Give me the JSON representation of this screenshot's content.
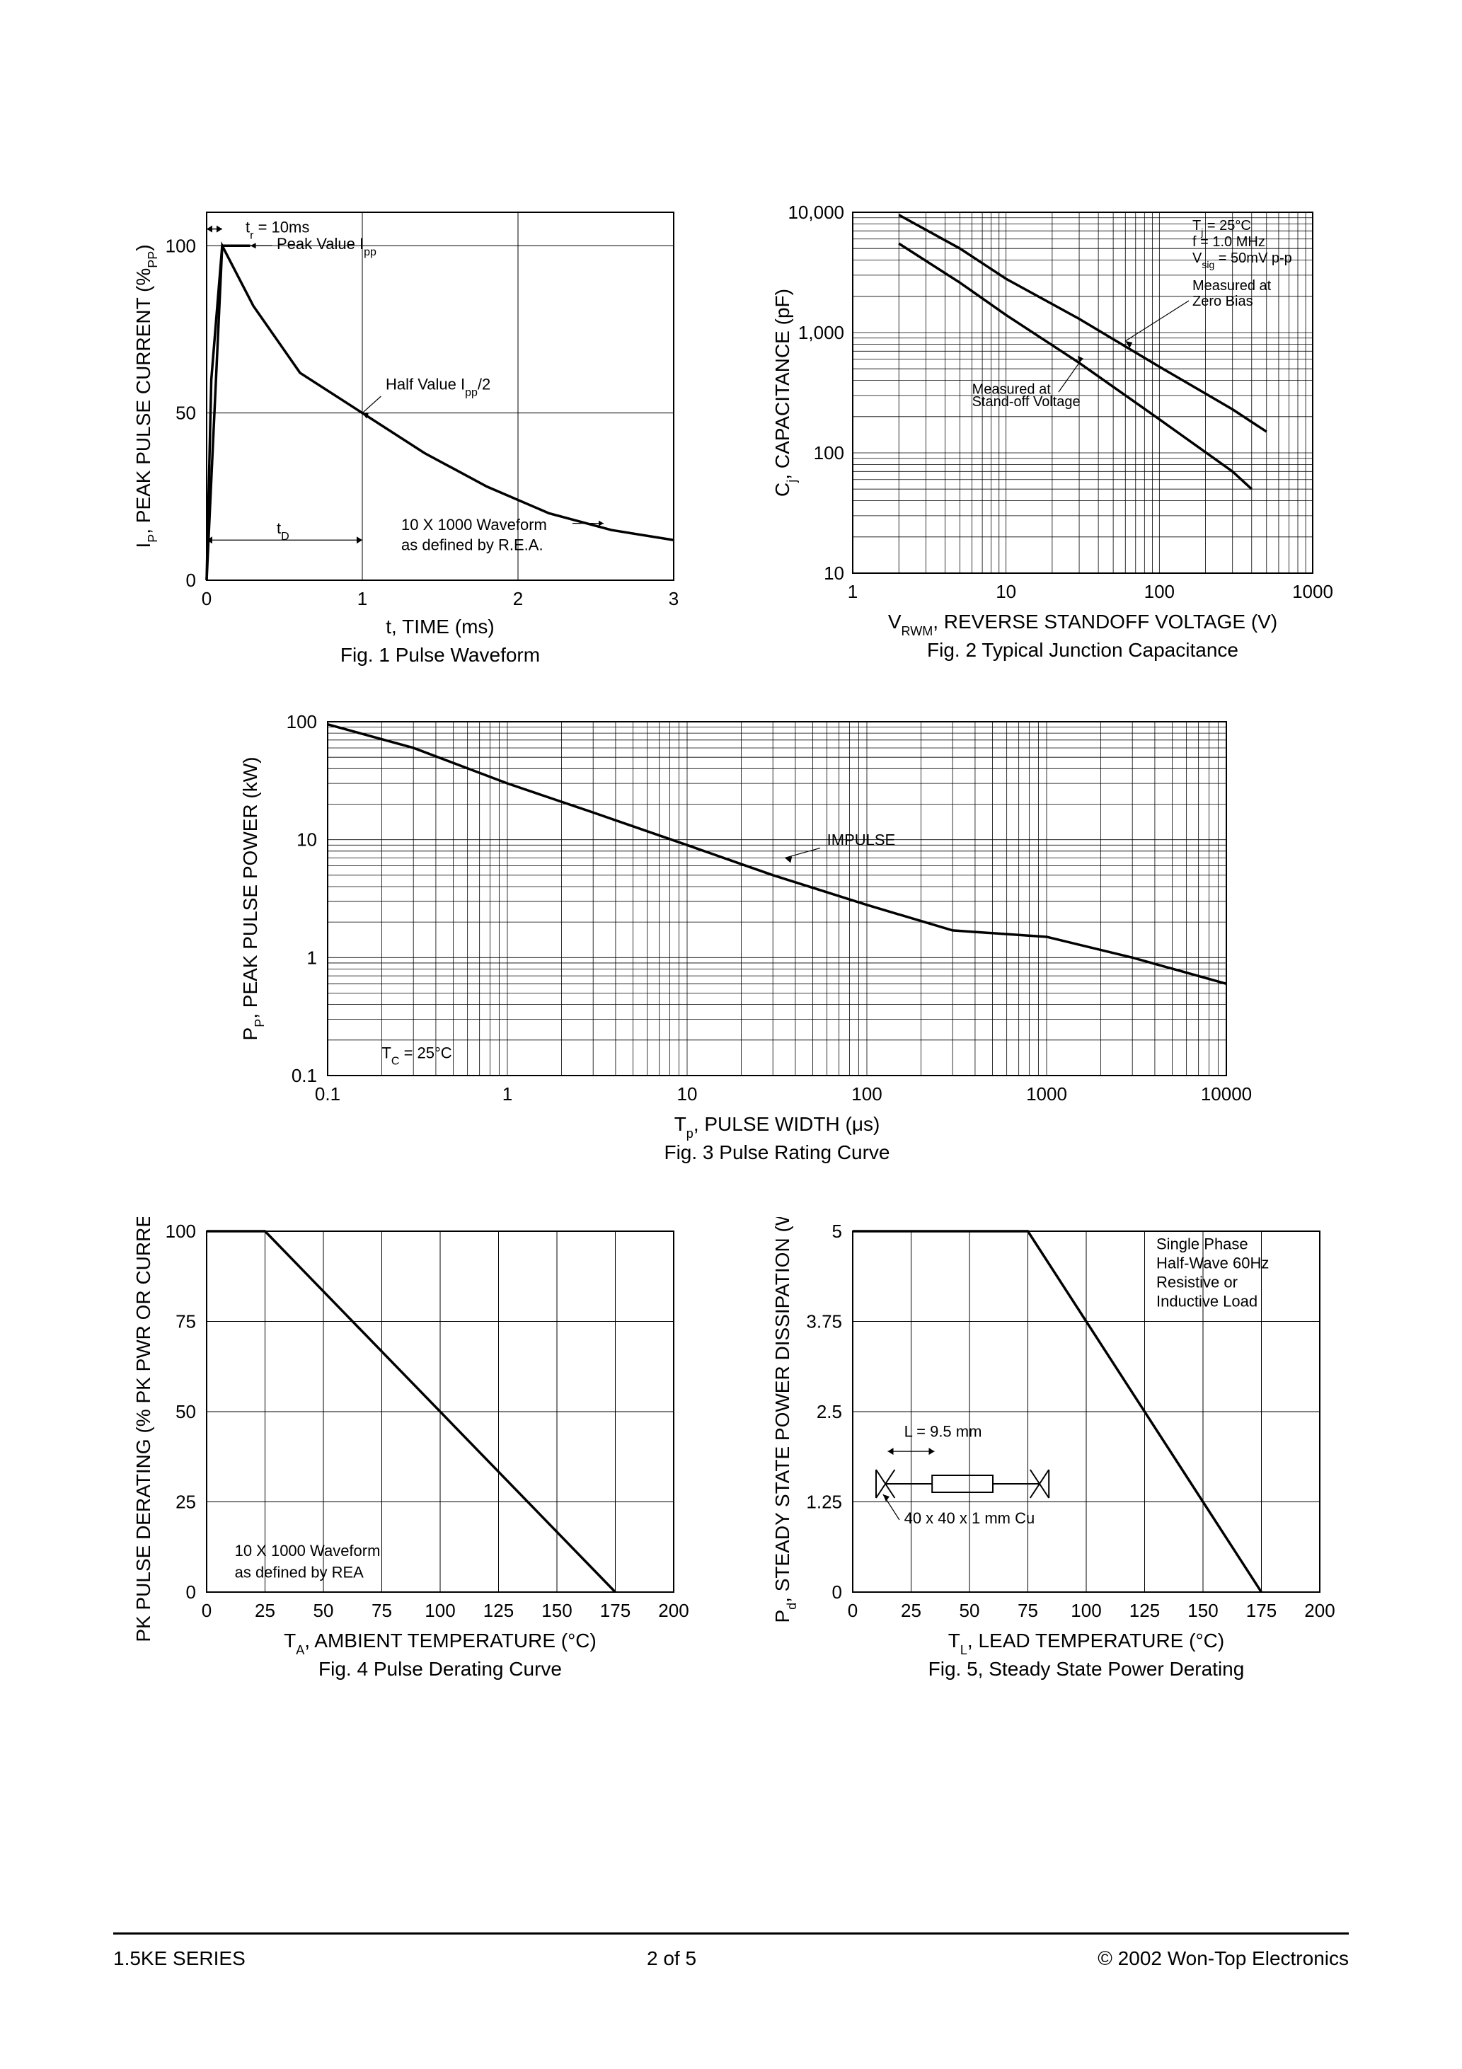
{
  "page": {
    "series": "1.5KE SERIES",
    "pageNum": "2  of  5",
    "copyright": "© 2002 Won-Top Electronics"
  },
  "fig1": {
    "caption": "Fig. 1  Pulse Waveform",
    "xlabel": "t, TIME (ms)",
    "ylabel_html": "I<tspan baseline-shift='sub' font-size='18'>P</tspan>, PEAK PULSE CURRENT (%<tspan baseline-shift='sub' font-size='18'>PP</tspan>)",
    "xticks": [
      0,
      1,
      2,
      3
    ],
    "yticks": [
      0,
      50,
      100
    ],
    "xlim": [
      0,
      3
    ],
    "ylim": [
      0,
      110
    ],
    "ann_tr": "t<tspan baseline-shift='sub' font-size='16'>r</tspan> = 10ms",
    "ann_peak": "Peak Value I<tspan baseline-shift='sub' font-size='16'>pp</tspan>",
    "ann_half": "Half Value I<tspan baseline-shift='sub' font-size='16'>pp</tspan>/2",
    "ann_td": "t<tspan baseline-shift='sub' font-size='16'>D</tspan>",
    "ann_wave1": "10 X 1000 Waveform",
    "ann_wave2": "as defined by R.E.A.",
    "curve": [
      [
        0,
        0
      ],
      [
        0.03,
        60
      ],
      [
        0.1,
        100
      ],
      [
        0.3,
        82
      ],
      [
        0.6,
        62
      ],
      [
        1.0,
        50
      ],
      [
        1.4,
        38
      ],
      [
        1.8,
        28
      ],
      [
        2.2,
        20
      ],
      [
        2.6,
        15
      ],
      [
        3.0,
        12
      ]
    ],
    "rise_line": [
      [
        0,
        0
      ],
      [
        0.1,
        100
      ]
    ],
    "peak_flat": [
      [
        0.1,
        100
      ],
      [
        0.28,
        100
      ]
    ],
    "colors": {
      "line": "#000000",
      "grid": "#000000",
      "bg": "#ffffff"
    }
  },
  "fig2": {
    "caption": "Fig. 2 Typical Junction Capacitance",
    "xlabel_html": "V<tspan baseline-shift='sub' font-size='18'>RWM</tspan>, REVERSE STANDOFF VOLTAGE (V)",
    "ylabel_html": "C<tspan baseline-shift='sub' font-size='18'>j</tspan>, CAPACITANCE (pF)",
    "xticks": [
      1,
      10,
      100,
      1000
    ],
    "yticks": [
      10,
      100,
      1000,
      10000
    ],
    "ann1": "T<tspan baseline-shift='sub' font-size='14'>j</tspan> = 25°C",
    "ann2": "f = 1.0 MHz",
    "ann3": "V<tspan baseline-shift='sub' font-size='14'>sig</tspan> = 50mV p-p",
    "ann_zero": "Measured at",
    "ann_zero2": "Zero Bias",
    "ann_so": "Measured at",
    "ann_so2": "Stand-off Voltage",
    "curve_zero": [
      [
        2,
        9500
      ],
      [
        5,
        5000
      ],
      [
        10,
        2800
      ],
      [
        30,
        1300
      ],
      [
        100,
        520
      ],
      [
        300,
        230
      ],
      [
        500,
        150
      ]
    ],
    "curve_so": [
      [
        2,
        5500
      ],
      [
        5,
        2600
      ],
      [
        10,
        1400
      ],
      [
        30,
        560
      ],
      [
        100,
        190
      ],
      [
        300,
        70
      ],
      [
        400,
        50
      ]
    ],
    "colors": {
      "line": "#000000",
      "grid": "#000000",
      "bg": "#ffffff"
    }
  },
  "fig3": {
    "caption": "Fig. 3 Pulse Rating Curve",
    "xlabel_html": "T<tspan baseline-shift='sub' font-size='18'>p</tspan>, PULSE WIDTH (μs)",
    "ylabel_html": "P<tspan baseline-shift='sub' font-size='18'>P</tspan>, PEAK PULSE POWER (kW)",
    "xticks": [
      0.1,
      1.0,
      10,
      100,
      1000,
      10000
    ],
    "yticks": [
      0.1,
      1.0,
      10,
      100
    ],
    "ann_tc": "T<tspan baseline-shift='sub' font-size='16'>C</tspan> = 25°C",
    "ann_imp": "IMPULSE",
    "curve": [
      [
        0.1,
        95
      ],
      [
        0.3,
        60
      ],
      [
        1,
        30
      ],
      [
        3,
        17
      ],
      [
        10,
        9
      ],
      [
        30,
        5
      ],
      [
        100,
        2.8
      ],
      [
        300,
        1.7
      ],
      [
        1000,
        1.5
      ],
      [
        3000,
        1.0
      ],
      [
        10000,
        0.6
      ]
    ],
    "colors": {
      "line": "#000000",
      "grid": "#000000",
      "bg": "#ffffff"
    }
  },
  "fig4": {
    "caption": "Fig. 4  Pulse Derating Curve",
    "xlabel_html": "T<tspan baseline-shift='sub' font-size='18'>A</tspan>, AMBIENT TEMPERATURE (°C)",
    "ylabel": "PK PULSE DERATING (% PK PWR OR CURRENT)",
    "xticks": [
      0,
      25,
      50,
      75,
      100,
      125,
      150,
      175,
      200
    ],
    "yticks": [
      0,
      25,
      50,
      75,
      100
    ],
    "ann_wave1": "10 X 1000 Waveform",
    "ann_wave2": "as defined by REA",
    "curve": [
      [
        0,
        100
      ],
      [
        25,
        100
      ],
      [
        175,
        0
      ]
    ],
    "colors": {
      "line": "#000000",
      "grid": "#000000",
      "bg": "#ffffff"
    }
  },
  "fig5": {
    "caption": "Fig. 5, Steady State Power Derating",
    "xlabel_html": "T<tspan baseline-shift='sub' font-size='18'>L</tspan>, LEAD TEMPERATURE (°C)",
    "ylabel_html": "P<tspan baseline-shift='sub' font-size='18'>d</tspan>, STEADY STATE POWER DISSIPATION (W)",
    "xticks": [
      0,
      25,
      50,
      75,
      100,
      125,
      150,
      175,
      200
    ],
    "yticks": [
      0,
      1.25,
      2.5,
      3.75,
      5.0
    ],
    "ann_box1": "Single Phase",
    "ann_box2": "Half-Wave 60Hz",
    "ann_box3": "Resistive or",
    "ann_box4": "Inductive Load",
    "ann_l": "L = 9.5 mm",
    "ann_cu": "40 x 40 x 1 mm Cu",
    "curve": [
      [
        0,
        5.0
      ],
      [
        75,
        5.0
      ],
      [
        175,
        0
      ]
    ],
    "colors": {
      "line": "#000000",
      "grid": "#000000",
      "bg": "#ffffff"
    }
  }
}
